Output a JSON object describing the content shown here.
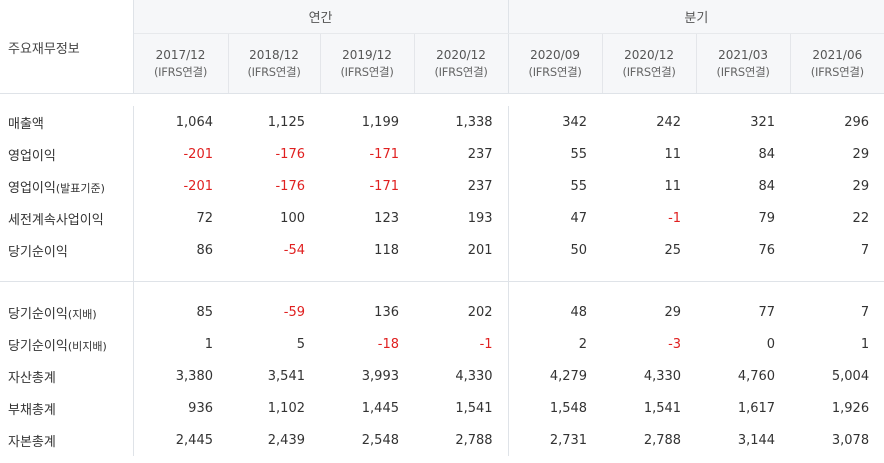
{
  "table": {
    "title": "주요재무정보",
    "groups": {
      "annual": "연간",
      "quarterly": "분기"
    },
    "periods": [
      {
        "date": "2017/12",
        "basis": "(IFRS연결)"
      },
      {
        "date": "2018/12",
        "basis": "(IFRS연결)"
      },
      {
        "date": "2019/12",
        "basis": "(IFRS연결)"
      },
      {
        "date": "2020/12",
        "basis": "(IFRS연결)"
      },
      {
        "date": "2020/09",
        "basis": "(IFRS연결)"
      },
      {
        "date": "2020/12",
        "basis": "(IFRS연결)"
      },
      {
        "date": "2021/03",
        "basis": "(IFRS연결)"
      },
      {
        "date": "2021/06",
        "basis": "(IFRS연결)"
      }
    ],
    "rows": [
      {
        "label": "매출액",
        "suffix": "",
        "values": [
          "1,064",
          "1,125",
          "1,199",
          "1,338",
          "342",
          "242",
          "321",
          "296"
        ]
      },
      {
        "label": "영업이익",
        "suffix": "",
        "values": [
          "-201",
          "-176",
          "-171",
          "237",
          "55",
          "11",
          "84",
          "29"
        ]
      },
      {
        "label": "영업이익",
        "suffix": "(발표기준)",
        "values": [
          "-201",
          "-176",
          "-171",
          "237",
          "55",
          "11",
          "84",
          "29"
        ]
      },
      {
        "label": "세전계속사업이익",
        "suffix": "",
        "values": [
          "72",
          "100",
          "123",
          "193",
          "47",
          "-1",
          "79",
          "22"
        ]
      },
      {
        "label": "당기순이익",
        "suffix": "",
        "values": [
          "86",
          "-54",
          "118",
          "201",
          "50",
          "25",
          "76",
          "7"
        ]
      },
      {
        "label": "당기순이익",
        "suffix": "(지배)",
        "values": [
          "85",
          "-59",
          "136",
          "202",
          "48",
          "29",
          "77",
          "7"
        ]
      },
      {
        "label": "당기순이익",
        "suffix": "(비지배)",
        "values": [
          "1",
          "5",
          "-18",
          "-1",
          "2",
          "-3",
          "0",
          "1"
        ]
      },
      {
        "label": "자산총계",
        "suffix": "",
        "values": [
          "3,380",
          "3,541",
          "3,993",
          "4,330",
          "4,279",
          "4,330",
          "4,760",
          "5,004"
        ]
      },
      {
        "label": "부채총계",
        "suffix": "",
        "values": [
          "936",
          "1,102",
          "1,445",
          "1,541",
          "1,548",
          "1,541",
          "1,617",
          "1,926"
        ]
      },
      {
        "label": "자본총계",
        "suffix": "",
        "values": [
          "2,445",
          "2,439",
          "2,548",
          "2,788",
          "2,731",
          "2,788",
          "3,144",
          "3,078"
        ]
      }
    ],
    "colors": {
      "negative": "#e02020",
      "header_bg": "#f6f7f9"
    }
  }
}
